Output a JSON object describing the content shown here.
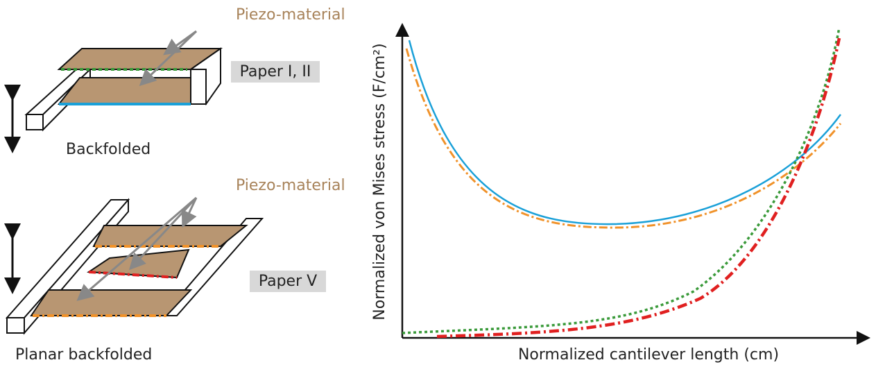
{
  "diagrams": [
    {
      "annotation": "Piezo-material",
      "tag": "Paper I, II",
      "label": "Backfolded"
    },
    {
      "annotation": "Piezo-material",
      "tag": "Paper V",
      "label": "Planar backfolded"
    }
  ],
  "plot": {
    "y_label": "Normalized von Mises stress (F/cm²)",
    "x_label": "Normalized cantilever length (cm)"
  }
}
